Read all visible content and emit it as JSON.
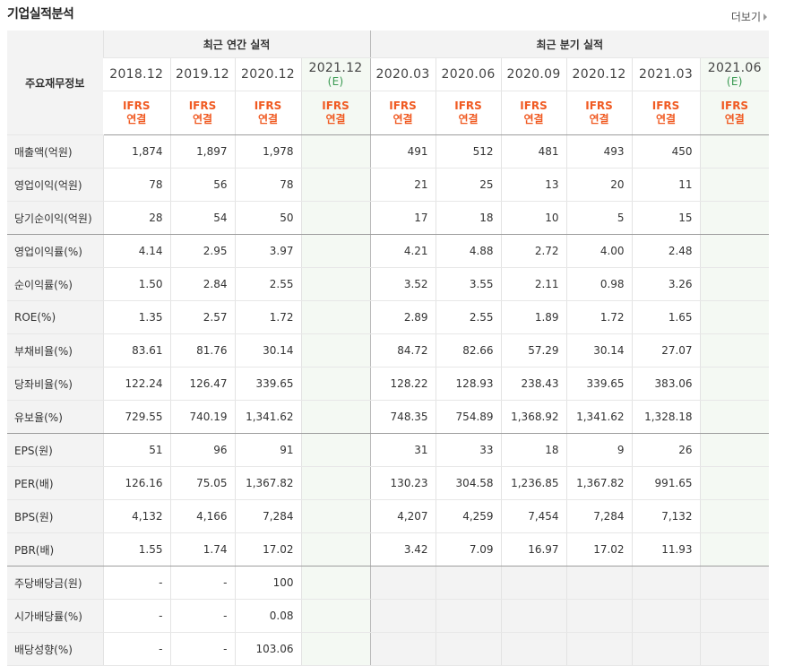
{
  "header": {
    "title": "기업실적분석",
    "more_label": "더보기"
  },
  "table": {
    "topleft": "주요재무정보",
    "groups": {
      "annual": "최근 연간 실적",
      "quarterly": "최근 분기 실적"
    },
    "periods": [
      {
        "label": "2018.12",
        "est": ""
      },
      {
        "label": "2019.12",
        "est": ""
      },
      {
        "label": "2020.12",
        "est": ""
      },
      {
        "label": "2021.12",
        "est": "(E)"
      },
      {
        "label": "2020.03",
        "est": ""
      },
      {
        "label": "2020.06",
        "est": ""
      },
      {
        "label": "2020.09",
        "est": ""
      },
      {
        "label": "2020.12",
        "est": ""
      },
      {
        "label": "2021.03",
        "est": ""
      },
      {
        "label": "2021.06",
        "est": "(E)"
      }
    ],
    "ifrs_top": "IFRS",
    "ifrs_bottom": "연결",
    "rows": [
      {
        "label": "매출액(억원)",
        "values": [
          "1,874",
          "1,897",
          "1,978",
          "",
          "491",
          "512",
          "481",
          "493",
          "450",
          ""
        ]
      },
      {
        "label": "영업이익(억원)",
        "values": [
          "78",
          "56",
          "78",
          "",
          "21",
          "25",
          "13",
          "20",
          "11",
          ""
        ]
      },
      {
        "label": "당기순이익(억원)",
        "values": [
          "28",
          "54",
          "50",
          "",
          "17",
          "18",
          "10",
          "5",
          "15",
          ""
        ]
      },
      {
        "label": "영업이익률(%)",
        "values": [
          "4.14",
          "2.95",
          "3.97",
          "",
          "4.21",
          "4.88",
          "2.72",
          "4.00",
          "2.48",
          ""
        ]
      },
      {
        "label": "순이익률(%)",
        "values": [
          "1.50",
          "2.84",
          "2.55",
          "",
          "3.52",
          "3.55",
          "2.11",
          "0.98",
          "3.26",
          ""
        ]
      },
      {
        "label": "ROE(%)",
        "values": [
          "1.35",
          "2.57",
          "1.72",
          "",
          "2.89",
          "2.55",
          "1.89",
          "1.72",
          "1.65",
          ""
        ]
      },
      {
        "label": "부채비율(%)",
        "values": [
          "83.61",
          "81.76",
          "30.14",
          "",
          "84.72",
          "82.66",
          "57.29",
          "30.14",
          "27.07",
          ""
        ]
      },
      {
        "label": "당좌비율(%)",
        "values": [
          "122.24",
          "126.47",
          "339.65",
          "",
          "128.22",
          "128.93",
          "238.43",
          "339.65",
          "383.06",
          ""
        ]
      },
      {
        "label": "유보율(%)",
        "values": [
          "729.55",
          "740.19",
          "1,341.62",
          "",
          "748.35",
          "754.89",
          "1,368.92",
          "1,341.62",
          "1,328.18",
          ""
        ]
      },
      {
        "label": "EPS(원)",
        "values": [
          "51",
          "96",
          "91",
          "",
          "31",
          "33",
          "18",
          "9",
          "26",
          ""
        ]
      },
      {
        "label": "PER(배)",
        "values": [
          "126.16",
          "75.05",
          "1,367.82",
          "",
          "130.23",
          "304.58",
          "1,236.85",
          "1,367.82",
          "991.65",
          ""
        ]
      },
      {
        "label": "BPS(원)",
        "values": [
          "4,132",
          "4,166",
          "7,284",
          "",
          "4,207",
          "4,259",
          "7,454",
          "7,284",
          "7,132",
          ""
        ]
      },
      {
        "label": "PBR(배)",
        "values": [
          "1.55",
          "1.74",
          "17.02",
          "",
          "3.42",
          "7.09",
          "16.97",
          "17.02",
          "11.93",
          ""
        ]
      },
      {
        "label": "주당배당금(원)",
        "values": [
          "-",
          "-",
          "100",
          "",
          "",
          "",
          "",
          "",
          "",
          ""
        ]
      },
      {
        "label": "시가배당률(%)",
        "values": [
          "-",
          "-",
          "0.08",
          "",
          "",
          "",
          "",
          "",
          "",
          ""
        ]
      },
      {
        "label": "배당성향(%)",
        "values": [
          "-",
          "-",
          "103.06",
          "",
          "",
          "",
          "",
          "",
          "",
          ""
        ]
      }
    ]
  }
}
